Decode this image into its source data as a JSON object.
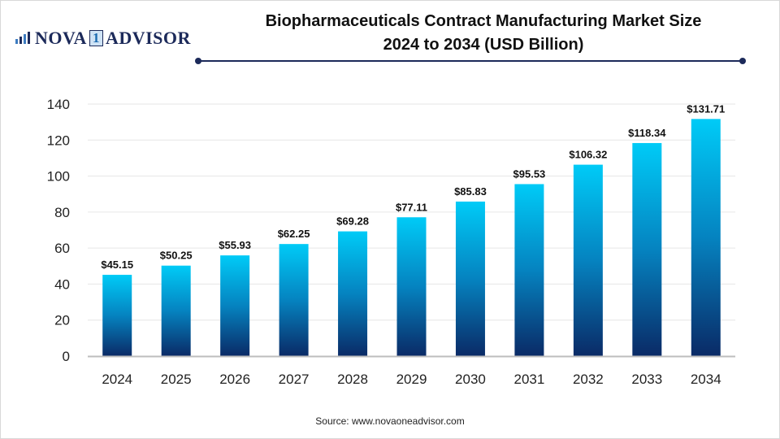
{
  "logo": {
    "text_left": "NOVA",
    "text_num": "1",
    "text_right": "ADVISOR"
  },
  "header": {
    "title_line1": "Biopharmaceuticals Contract Manufacturing Market Size",
    "title_line2": "2024 to 2034 (USD Billion)"
  },
  "source": "Source: www.novaoneadvisor.com",
  "colors": {
    "bar_top": "#00cbf7",
    "bar_bottom": "#0a2a66",
    "accent": "#1c2a5a"
  },
  "chart_data": {
    "type": "bar",
    "categories": [
      "2024",
      "2025",
      "2026",
      "2027",
      "2028",
      "2029",
      "2030",
      "2031",
      "2032",
      "2033",
      "2034"
    ],
    "values": [
      45.15,
      50.25,
      55.93,
      62.25,
      69.28,
      77.11,
      85.83,
      95.53,
      106.32,
      118.34,
      131.71
    ],
    "data_labels": [
      "$45.15",
      "$50.25",
      "$55.93",
      "$62.25",
      "$69.28",
      "$77.11",
      "$85.83",
      "$95.53",
      "$106.32",
      "$118.34",
      "$131.71"
    ],
    "ylim": [
      0,
      140
    ],
    "yticks": [
      0,
      20,
      40,
      60,
      80,
      100,
      120,
      140
    ],
    "grid": true,
    "xlabel": "",
    "ylabel": ""
  }
}
